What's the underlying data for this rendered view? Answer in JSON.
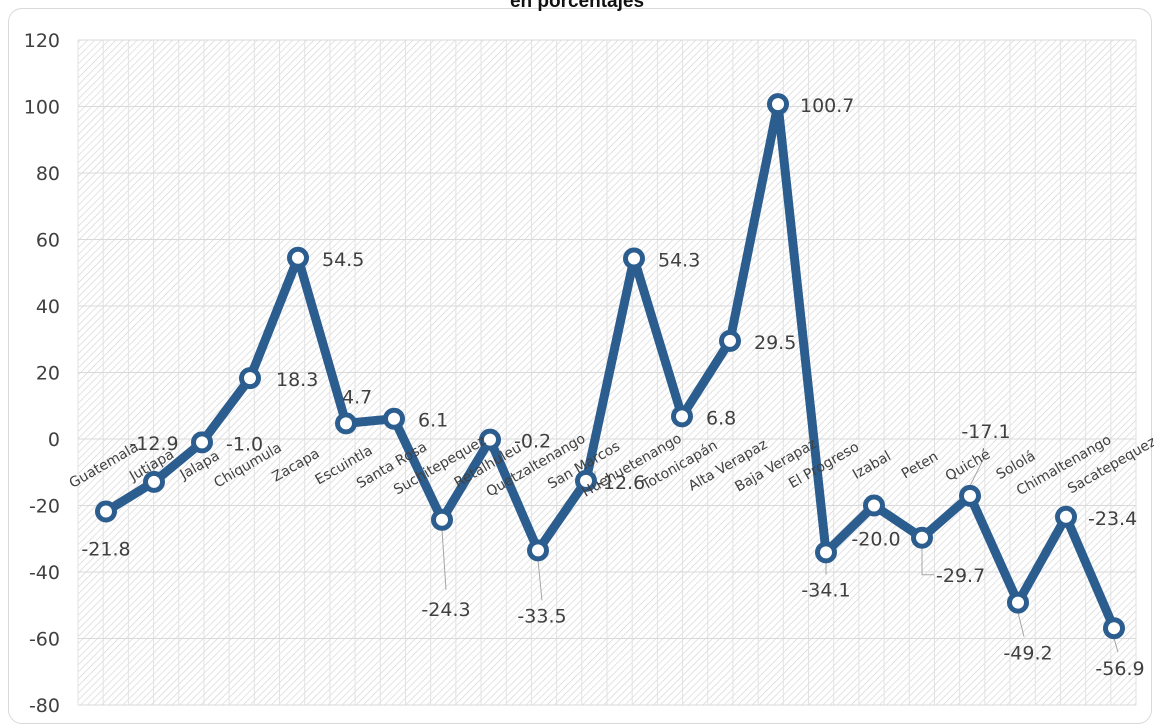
{
  "chart_data": {
    "type": "line",
    "title": "en porcentajes",
    "xlabel": "",
    "ylabel": "",
    "ylim": [
      -80,
      120
    ],
    "yticks": [
      120,
      100,
      80,
      60,
      40,
      20,
      0,
      -20,
      -40,
      -60,
      -80
    ],
    "grid": true,
    "legend": "none",
    "categories": [
      "Guatemala",
      "Jutiapa",
      "Jalapa",
      "Chiqumula",
      "Zacapa",
      "Escuintla",
      "Santa Rosa",
      "Suchitepequez",
      "Retalhuleu",
      "Quetzaltenango",
      "San Marcos",
      "Huehuetenango",
      "Totonicapán",
      "Alta Verapaz",
      "Baja Verapaz",
      "El Progreso",
      "Izabal",
      "Peten",
      "Quiché",
      "Sololá",
      "Chimaltenango",
      "Sacatepequez"
    ],
    "series": [
      {
        "values": [
          -21.8,
          -12.9,
          -1.0,
          18.3,
          54.5,
          4.7,
          6.1,
          -24.3,
          -0.2,
          -33.5,
          -12.6,
          54.3,
          6.8,
          29.5,
          100.7,
          -34.1,
          -20.0,
          -29.7,
          -17.1,
          -49.2,
          -23.4,
          -56.9
        ],
        "labels": [
          "-21.8",
          "-12.9",
          "-1.0",
          "18.3",
          "54.5",
          "4.7",
          "6.1",
          "-24.3",
          "-0.2",
          "-33.5",
          "-12.6",
          "54.3",
          "6.8",
          "29.5",
          "100.7",
          "-34.1",
          "-20.0",
          "-29.7",
          "-17.1",
          "-49.2",
          "-23.4",
          "-56.9"
        ],
        "color": "#2c5d8f"
      }
    ]
  }
}
